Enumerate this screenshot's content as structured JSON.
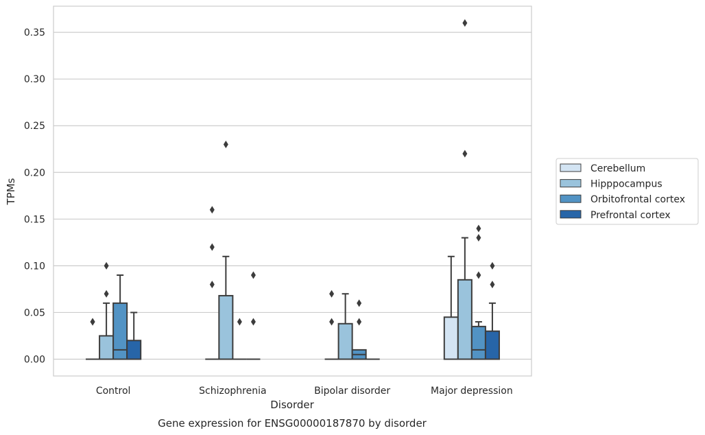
{
  "chart_data": {
    "type": "box",
    "title": "Gene expression for ENSG00000187870 by disorder",
    "xlabel": "Disorder",
    "ylabel": "TPMs",
    "categories": [
      "Control",
      "Schizophrenia",
      "Bipolar disorder",
      "Major depression"
    ],
    "ylim": [
      -0.018,
      0.378
    ],
    "yticks": [
      "0.00",
      "0.05",
      "0.10",
      "0.15",
      "0.20",
      "0.25",
      "0.30",
      "0.35"
    ],
    "grid": "horizontal",
    "legend_position": "right",
    "series": [
      {
        "name": "Cerebellum",
        "color": "#d3e4f3",
        "boxes": [
          {
            "q1": 0,
            "median": 0,
            "q3": 0,
            "whisker_low": 0,
            "whisker_high": 0,
            "outliers": [
              0.04,
              0.04
            ]
          },
          {
            "q1": 0,
            "median": 0,
            "q3": 0,
            "whisker_low": 0,
            "whisker_high": 0,
            "outliers": [
              0.08,
              0.12,
              0.16
            ]
          },
          {
            "q1": 0,
            "median": 0,
            "q3": 0,
            "whisker_low": 0,
            "whisker_high": 0,
            "outliers": [
              0.04,
              0.07
            ]
          },
          {
            "q1": 0,
            "median": 0,
            "q3": 0.045,
            "whisker_low": 0,
            "whisker_high": 0.11,
            "outliers": []
          }
        ]
      },
      {
        "name": "Hipppocampus",
        "color": "#9ac3dc",
        "boxes": [
          {
            "q1": 0,
            "median": 0,
            "q3": 0.025,
            "whisker_low": 0,
            "whisker_high": 0.06,
            "outliers": [
              0.07,
              0.1
            ]
          },
          {
            "q1": 0,
            "median": 0,
            "q3": 0.068,
            "whisker_low": 0,
            "whisker_high": 0.11,
            "outliers": [
              0.23
            ]
          },
          {
            "q1": 0,
            "median": 0,
            "q3": 0.038,
            "whisker_low": 0,
            "whisker_high": 0.07,
            "outliers": []
          },
          {
            "q1": 0,
            "median": 0,
            "q3": 0.085,
            "whisker_low": 0,
            "whisker_high": 0.13,
            "outliers": [
              0.22,
              0.36
            ]
          }
        ]
      },
      {
        "name": "Orbitofrontal cortex",
        "color": "#5293c4",
        "boxes": [
          {
            "q1": 0,
            "median": 0.01,
            "q3": 0.06,
            "whisker_low": 0,
            "whisker_high": 0.09,
            "outliers": []
          },
          {
            "q1": 0,
            "median": 0,
            "q3": 0,
            "whisker_low": 0,
            "whisker_high": 0,
            "outliers": [
              0.04
            ]
          },
          {
            "q1": 0,
            "median": 0.005,
            "q3": 0.01,
            "whisker_low": 0,
            "whisker_high": 0.01,
            "outliers": [
              0.04,
              0.06
            ]
          },
          {
            "q1": 0,
            "median": 0.01,
            "q3": 0.035,
            "whisker_low": 0,
            "whisker_high": 0.04,
            "outliers": [
              0.09,
              0.13,
              0.14
            ]
          }
        ]
      },
      {
        "name": "Prefrontal cortex",
        "color": "#2765a8",
        "boxes": [
          {
            "q1": 0,
            "median": 0,
            "q3": 0.02,
            "whisker_low": 0,
            "whisker_high": 0.05,
            "outliers": []
          },
          {
            "q1": 0,
            "median": 0,
            "q3": 0,
            "whisker_low": 0,
            "whisker_high": 0,
            "outliers": [
              0.04,
              0.09
            ]
          },
          {
            "q1": 0,
            "median": 0,
            "q3": 0,
            "whisker_low": 0,
            "whisker_high": 0,
            "outliers": []
          },
          {
            "q1": 0,
            "median": 0,
            "q3": 0.03,
            "whisker_low": 0,
            "whisker_high": 0.06,
            "outliers": [
              0.08,
              0.1
            ]
          }
        ]
      }
    ]
  }
}
